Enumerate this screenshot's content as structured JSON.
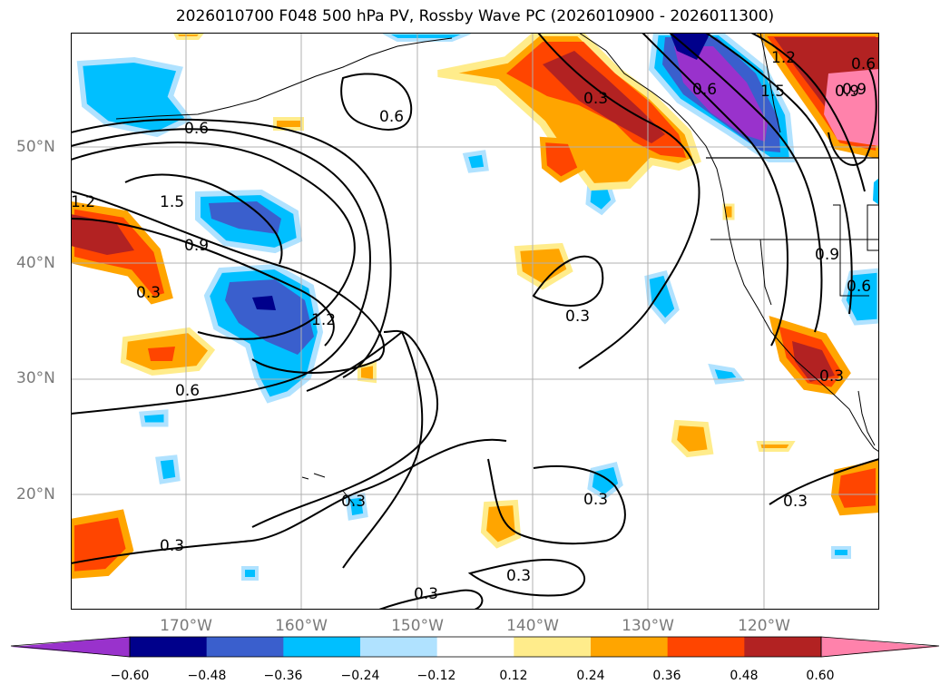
{
  "title": "2026010700 F048 500 hPa PV, Rossby Wave PC (2026010900 - 2026011300)",
  "lat_ticks": [
    "50°N",
    "40°N",
    "30°N",
    "20°N"
  ],
  "lon_ticks": [
    "170°W",
    "160°W",
    "150°W",
    "140°W",
    "130°W",
    "120°W"
  ],
  "colorbar": {
    "labels": [
      "−0.60",
      "−0.48",
      "−0.36",
      "−0.24",
      "−0.12",
      "0.12",
      "0.24",
      "0.36",
      "0.48",
      "0.60"
    ],
    "colors": [
      "#9932cc",
      "#00008b",
      "#3a5fcd",
      "#00bfff",
      "#b0e2ff",
      "#ffffff",
      "#ffec8b",
      "#ffa500",
      "#ff4500",
      "#b22222",
      "#ff82ab"
    ]
  },
  "contour_labels": [
    "0.6",
    "0.6",
    "0.3",
    "0.6",
    "1.5",
    "1.2",
    "0.9",
    "1.2",
    "1.5",
    "0.9",
    "1.2",
    "0.3",
    "0.6",
    "0.3",
    "0.3",
    "0.6",
    "0.9",
    "0.3",
    "0.3",
    "0.3",
    "0.3",
    "0.3",
    "0.3",
    "0.6",
    "0.9"
  ]
}
